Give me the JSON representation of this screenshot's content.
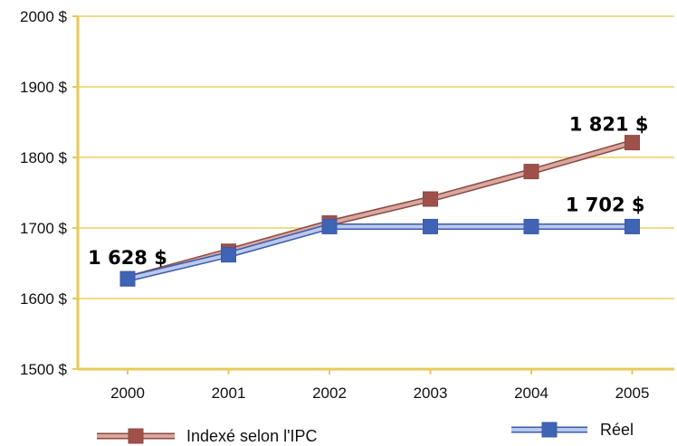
{
  "chart_data": {
    "type": "line",
    "title": "",
    "xlabel": "",
    "ylabel": "",
    "categories": [
      "2000",
      "2001",
      "2002",
      "2003",
      "2004",
      "2005"
    ],
    "ylim": [
      1500,
      2000
    ],
    "yticks": [
      1500,
      1600,
      1700,
      1800,
      1900,
      2000
    ],
    "ytick_labels": [
      "1500 $",
      "1600 $",
      "1700 $",
      "1800 $",
      "1900 $",
      "2000 $"
    ],
    "grid": true,
    "legend_position": "bottom",
    "series": [
      {
        "name": "Indexé selon l'IPC",
        "values": [
          1628,
          1667,
          1707,
          1741,
          1780,
          1821
        ],
        "line_color": "#d9a79f",
        "line_edge_color": "#8a4a42",
        "marker_color": "#a0504a"
      },
      {
        "name": "Réel",
        "values": [
          1628,
          1662,
          1702,
          1702,
          1702,
          1702
        ],
        "line_color": "#b9c9ee",
        "line_edge_color": "#3d5aa8",
        "marker_color": "#3f63b5"
      }
    ],
    "annotations": [
      {
        "text": "1 628 $",
        "series": 1,
        "index": 0
      },
      {
        "text": "1 821 $",
        "series": 0,
        "index": 5
      },
      {
        "text": "1 702 $",
        "series": 1,
        "index": 5
      }
    ],
    "colors": {
      "axis": "#e8c95a",
      "grid": "#f0dc8a"
    }
  }
}
